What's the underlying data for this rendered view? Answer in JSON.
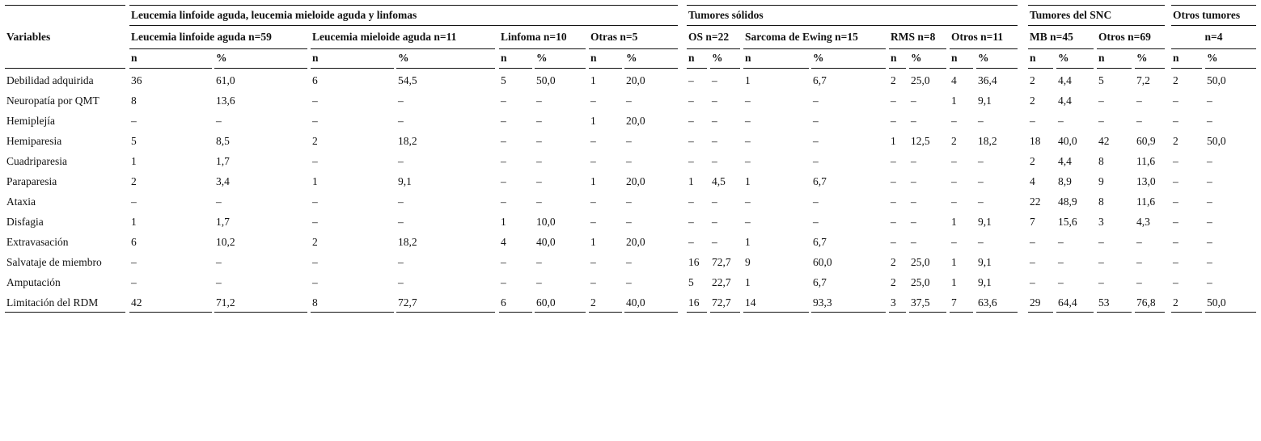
{
  "table": {
    "header": {
      "variables": "Variables",
      "groups": [
        {
          "label": "Leucemia linfoide aguda, leucemia mieloide aguda y linfomas",
          "subgroups": [
            "Leucemia linfoide aguda n=59",
            "Leucemia mieloide aguda n=11",
            "Linfoma n=10",
            "Otras n=5"
          ]
        },
        {
          "label": "Tumores sólidos",
          "subgroups": [
            "OS n=22",
            "Sarcoma de Ewing n=15",
            "RMS n=8",
            "Otros n=11"
          ]
        },
        {
          "label": "Tumores del SNC",
          "subgroups": [
            "MB n=45",
            "Otros n=69"
          ]
        },
        {
          "label": "Otros tumores",
          "subgroups": [
            "n=4"
          ]
        }
      ],
      "columns": [
        "n",
        "%",
        "n",
        "%",
        "n",
        "%",
        "n",
        "%",
        "n",
        "%",
        "n",
        "%",
        "n",
        "%",
        "n",
        "%",
        "n",
        "%",
        "n",
        "%",
        "n",
        "%"
      ]
    },
    "rows": [
      [
        "Debilidad adquirida",
        "36",
        "61,0",
        "6",
        "54,5",
        "5",
        "50,0",
        "1",
        "20,0",
        "–",
        "–",
        "1",
        "6,7",
        "2",
        "25,0",
        "4",
        "36,4",
        "2",
        "4,4",
        "5",
        "7,2",
        "2",
        "50,0"
      ],
      [
        "Neuropatía por QMT",
        "8",
        "13,6",
        "–",
        "–",
        "–",
        "–",
        "–",
        "–",
        "–",
        "–",
        "–",
        "–",
        "–",
        "–",
        "1",
        "9,1",
        "2",
        "4,4",
        "–",
        "–",
        "–",
        "–"
      ],
      [
        "Hemiplejía",
        "–",
        "–",
        "–",
        "–",
        "–",
        "–",
        "1",
        "20,0",
        "–",
        "–",
        "–",
        "–",
        "–",
        "–",
        "–",
        "–",
        "–",
        "–",
        "–",
        "–",
        "–",
        "–"
      ],
      [
        "Hemiparesia",
        "5",
        "8,5",
        "2",
        "18,2",
        "–",
        "–",
        "–",
        "–",
        "–",
        "–",
        "–",
        "–",
        "1",
        "12,5",
        "2",
        "18,2",
        "18",
        "40,0",
        "42",
        "60,9",
        "2",
        "50,0"
      ],
      [
        "Cuadriparesia",
        "1",
        "1,7",
        "–",
        "–",
        "–",
        "–",
        "–",
        "–",
        "–",
        "–",
        "–",
        "–",
        "–",
        "–",
        "–",
        "–",
        "2",
        "4,4",
        "8",
        "11,6",
        "–",
        "–"
      ],
      [
        "Paraparesia",
        "2",
        "3,4",
        "1",
        "9,1",
        "–",
        "–",
        "1",
        "20,0",
        "1",
        "4,5",
        "1",
        "6,7",
        "–",
        "–",
        "–",
        "–",
        "4",
        "8,9",
        "9",
        "13,0",
        "–",
        "–"
      ],
      [
        "Ataxia",
        "–",
        "–",
        "–",
        "–",
        "–",
        "–",
        "–",
        "–",
        "–",
        "–",
        "–",
        "–",
        "–",
        "–",
        "–",
        "–",
        "22",
        "48,9",
        "8",
        "11,6",
        "–",
        "–"
      ],
      [
        "Disfagia",
        "1",
        "1,7",
        "–",
        "–",
        "1",
        "10,0",
        "–",
        "–",
        "–",
        "–",
        "–",
        "–",
        "–",
        "–",
        "1",
        "9,1",
        "7",
        "15,6",
        "3",
        "4,3",
        "–",
        "–"
      ],
      [
        "Extravasación",
        "6",
        "10,2",
        "2",
        "18,2",
        "4",
        "40,0",
        "1",
        "20,0",
        "–",
        "–",
        "1",
        "6,7",
        "–",
        "–",
        "–",
        "–",
        "–",
        "–",
        "–",
        "–",
        "–",
        "–"
      ],
      [
        "Salvataje de miembro",
        "–",
        "–",
        "–",
        "–",
        "–",
        "–",
        "–",
        "–",
        "16",
        "72,7",
        "9",
        "60,0",
        "2",
        "25,0",
        "1",
        "9,1",
        "–",
        "–",
        "–",
        "–",
        "–",
        "–"
      ],
      [
        "Amputación",
        "–",
        "–",
        "–",
        "–",
        "–",
        "–",
        "–",
        "–",
        "5",
        "22,7",
        "1",
        "6,7",
        "2",
        "25,0",
        "1",
        "9,1",
        "–",
        "–",
        "–",
        "–",
        "–",
        "–"
      ],
      [
        "Limitación del RDM",
        "42",
        "71,2",
        "8",
        "72,7",
        "6",
        "60,0",
        "2",
        "40,0",
        "16",
        "72,7",
        "14",
        "93,3",
        "3",
        "37,5",
        "7",
        "63,6",
        "29",
        "64,4",
        "53",
        "76,8",
        "2",
        "50,0"
      ]
    ]
  }
}
